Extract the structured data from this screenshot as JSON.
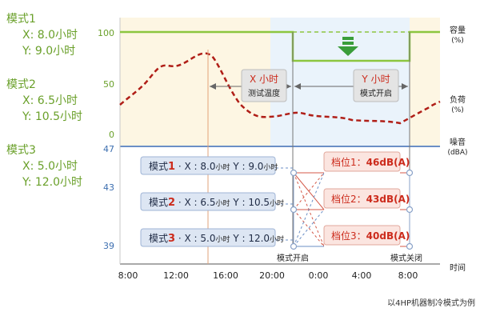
{
  "modes": [
    {
      "title": "模式1",
      "x": "X:  8.0小时",
      "y": "Y:  9.0小时"
    },
    {
      "title": "模式2",
      "x": "X:  6.5小时",
      "y": "Y: 10.5小时"
    },
    {
      "title": "模式3",
      "x": "X:  5.0小时",
      "y": "Y: 12.0小时"
    }
  ],
  "left_axis": {
    "capacity_100": "100",
    "load_50": "50",
    "load_0": "0",
    "noise_47": "47",
    "noise_43": "43",
    "noise_39": "39"
  },
  "right_labels": {
    "capacity": "容量",
    "capacity_unit": "(%)",
    "load": "负荷",
    "load_unit": "(%)",
    "noise": "噪音",
    "noise_unit": "(dBA)",
    "time": "时间"
  },
  "x_ticks": [
    "8:00",
    "12:00",
    "16:00",
    "20:00",
    "0:00",
    "4:00",
    "8:00"
  ],
  "x_box": {
    "title": "X 小时",
    "sub": "测试温度"
  },
  "y_box": {
    "title": "Y 小时",
    "sub": "模式开启"
  },
  "mode_boxes": [
    {
      "name": "模式",
      "num": "1",
      "rest1": " · X : 8.0",
      "unit1": "小时",
      "rest2": " Y : 9.0",
      "unit2": "小时"
    },
    {
      "name": "模式",
      "num": "2",
      "rest1": " · X : 6.5",
      "unit1": "小时",
      "rest2": " Y : 10.5",
      "unit2": "小时"
    },
    {
      "name": "模式",
      "num": "3",
      "rest1": " · X : 5.0",
      "unit1": "小时",
      "rest2": " Y : 12.0",
      "unit2": "小时"
    }
  ],
  "gear_boxes": [
    {
      "label": "档位",
      "num": "1",
      "value": "46dB(A)"
    },
    {
      "label": "档位",
      "num": "2",
      "value": "43dB(A)"
    },
    {
      "label": "档位",
      "num": "3",
      "value": "40dB(A)"
    }
  ],
  "mode_on": "模式开启",
  "mode_off": "模式关闭",
  "footnote": "以4HP机器制冷模式为例",
  "colors": {
    "green": "#8cc63f",
    "green_text": "#6aa02a",
    "dashed_red": "#b01e17",
    "noise_blue": "#6b8fc6",
    "accent_red": "#cc2b1c"
  }
}
